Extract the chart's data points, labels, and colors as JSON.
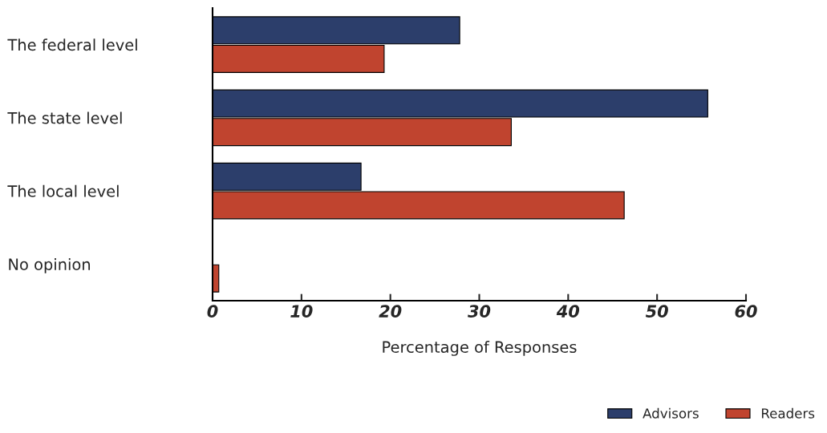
{
  "chart_data": {
    "type": "bar",
    "orientation": "horizontal",
    "xlabel": "Percentage of Responses",
    "categories": [
      "The federal level",
      "The state level",
      "The local level",
      "No opinion"
    ],
    "series": [
      {
        "name": "Advisors",
        "color": "#2c3e6b",
        "values": [
          27.8,
          55.7,
          16.7,
          null
        ]
      },
      {
        "name": "Readers",
        "color": "#c0442f",
        "values": [
          19.3,
          33.6,
          46.3,
          0.7
        ]
      }
    ],
    "xlim": [
      0,
      60
    ],
    "xticks": [
      0,
      10,
      20,
      30,
      40,
      50,
      60
    ],
    "grid": false,
    "legend": "bottom right"
  }
}
